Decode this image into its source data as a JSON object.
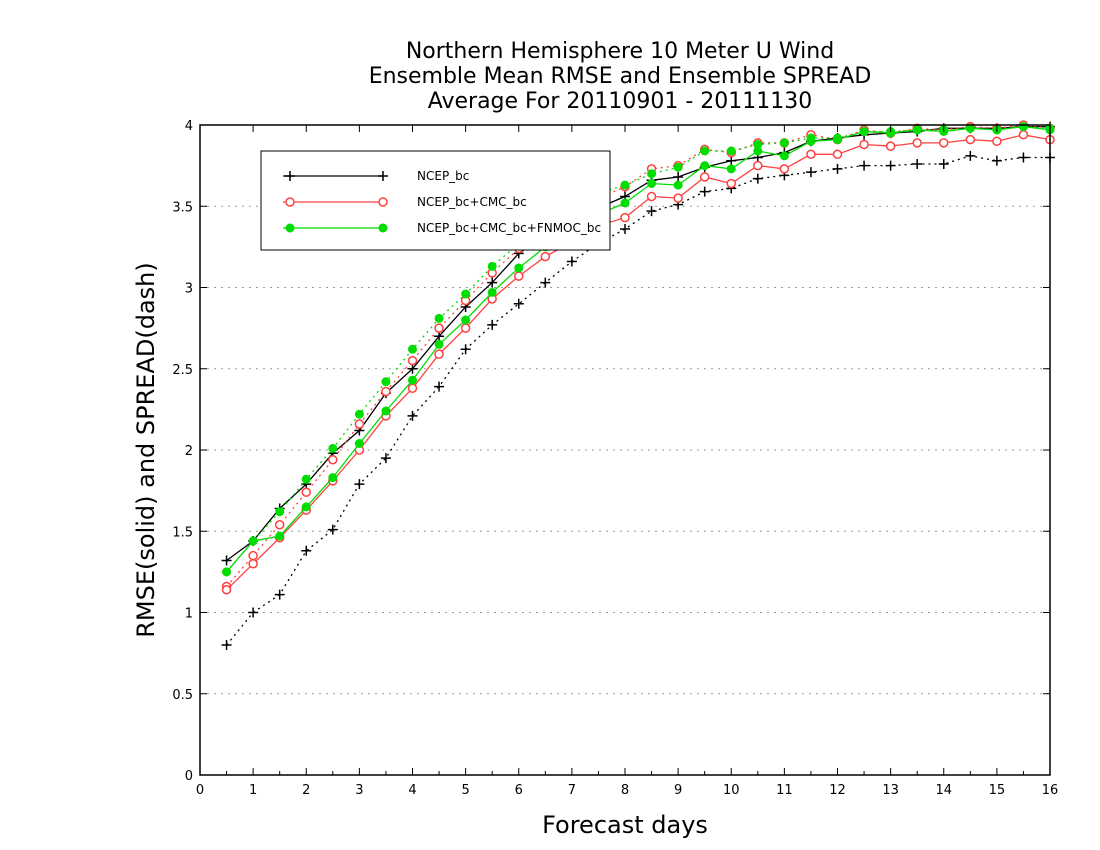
{
  "chart_data": {
    "type": "line",
    "title": [
      "Northern Hemisphere 10 Meter U Wind",
      "Ensemble Mean RMSE and Ensemble SPREAD",
      "Average For 20110901 - 20111130"
    ],
    "xlabel": "Forecast days",
    "ylabel": "RMSE(solid) and SPREAD(dash)",
    "xlim": [
      0,
      16
    ],
    "ylim": [
      0,
      4
    ],
    "x_ticks": [
      "0",
      "1",
      "2",
      "3",
      "4",
      "5",
      "6",
      "7",
      "8",
      "9",
      "10",
      "11",
      "12",
      "13",
      "14",
      "15",
      "16"
    ],
    "y_ticks": [
      "0",
      "0.5",
      "1",
      "1.5",
      "2",
      "2.5",
      "3",
      "3.5",
      "4"
    ],
    "grid": "horizontal dotted",
    "legend_position": "top-left",
    "x": [
      0.5,
      1,
      1.5,
      2,
      2.5,
      3,
      3.5,
      4,
      4.5,
      5,
      5.5,
      6,
      6.5,
      7,
      7.5,
      8,
      8.5,
      9,
      9.5,
      10,
      10.5,
      11,
      11.5,
      12,
      12.5,
      13,
      13.5,
      14,
      14.5,
      15,
      15.5,
      16
    ],
    "series": [
      {
        "name": "NCEP_bc",
        "color": "#000000",
        "marker": "plus",
        "rmse": [
          1.32,
          1.44,
          1.64,
          1.79,
          1.98,
          2.12,
          2.35,
          2.5,
          2.7,
          2.88,
          3.03,
          3.21,
          3.32,
          3.43,
          3.49,
          3.56,
          3.66,
          3.68,
          3.74,
          3.78,
          3.8,
          3.83,
          3.9,
          3.92,
          3.94,
          3.95,
          3.96,
          3.98,
          3.98,
          3.98,
          3.99,
          3.99
        ],
        "spread": [
          0.8,
          1.0,
          1.11,
          1.38,
          1.51,
          1.79,
          1.95,
          2.21,
          2.39,
          2.62,
          2.77,
          2.9,
          3.03,
          3.16,
          3.27,
          3.36,
          3.47,
          3.51,
          3.59,
          3.61,
          3.67,
          3.69,
          3.71,
          3.73,
          3.75,
          3.75,
          3.76,
          3.76,
          3.81,
          3.78,
          3.8,
          3.8
        ]
      },
      {
        "name": "NCEP_bc+CMC_bc",
        "color": "#ff4040",
        "marker": "open-circle",
        "rmse": [
          1.14,
          1.3,
          1.46,
          1.63,
          1.81,
          2.0,
          2.21,
          2.38,
          2.59,
          2.75,
          2.93,
          3.07,
          3.19,
          3.28,
          3.38,
          3.43,
          3.56,
          3.55,
          3.68,
          3.64,
          3.75,
          3.73,
          3.82,
          3.82,
          3.88,
          3.87,
          3.89,
          3.89,
          3.91,
          3.9,
          3.94,
          3.91
        ],
        "spread": [
          1.16,
          1.35,
          1.54,
          1.74,
          1.94,
          2.16,
          2.36,
          2.55,
          2.75,
          2.92,
          3.09,
          3.24,
          3.36,
          3.46,
          3.55,
          3.62,
          3.73,
          3.75,
          3.85,
          3.83,
          3.89,
          3.89,
          3.94,
          3.91,
          3.97,
          3.95,
          3.98,
          3.97,
          3.99,
          3.98,
          4.0,
          3.98
        ]
      },
      {
        "name": "NCEP_bc+CMC_bc+FNMOC_bc",
        "color": "#00dd00",
        "marker": "filled-circle",
        "rmse": [
          1.25,
          1.44,
          1.47,
          1.65,
          1.83,
          2.04,
          2.24,
          2.43,
          2.65,
          2.8,
          2.97,
          3.12,
          3.25,
          3.35,
          3.45,
          3.52,
          3.64,
          3.63,
          3.75,
          3.73,
          3.84,
          3.81,
          3.9,
          3.91,
          3.96,
          3.95,
          3.97,
          3.96,
          3.98,
          3.97,
          3.99,
          3.97
        ],
        "spread": [
          1.25,
          1.44,
          1.62,
          1.82,
          2.01,
          2.22,
          2.42,
          2.62,
          2.81,
          2.96,
          3.13,
          3.27,
          3.4,
          3.49,
          3.58,
          3.63,
          3.7,
          3.74,
          3.84,
          3.84,
          3.88,
          3.89,
          3.92,
          3.92,
          3.96,
          3.96,
          3.97,
          3.97,
          3.98,
          3.97,
          3.99,
          3.98
        ]
      }
    ]
  }
}
